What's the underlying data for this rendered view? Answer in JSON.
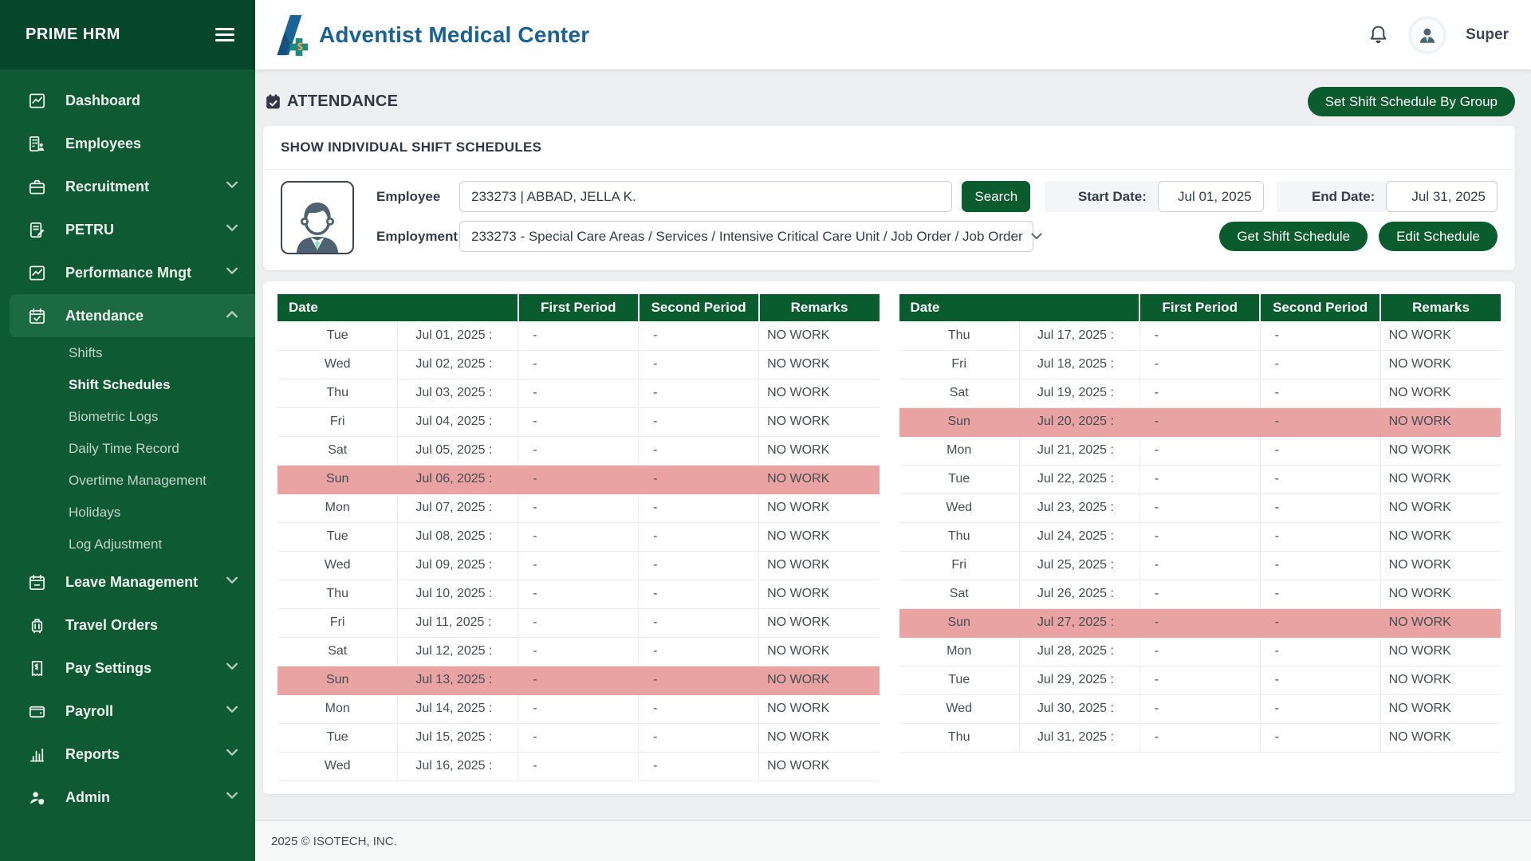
{
  "colors": {
    "sidebar": "#0d5a33",
    "sidebar_dark": "#06462a",
    "sidebar_active": "#1b6a42",
    "accent_green": "#0a5c2e",
    "table_header_green": "#095c2d",
    "sunday_highlight": "#e9a3a3",
    "brand_blue": "#1a6295"
  },
  "sidebar": {
    "brand": "PRIME HRM",
    "items": [
      {
        "label": "Dashboard",
        "icon": "chart-line-icon"
      },
      {
        "label": "Employees",
        "icon": "building-users-icon"
      },
      {
        "label": "Recruitment",
        "icon": "briefcase-icon",
        "chevron": "down"
      },
      {
        "label": "PETRU",
        "icon": "file-signature-icon",
        "chevron": "down"
      },
      {
        "label": "Performance Mngt",
        "icon": "chart-line-icon",
        "chevron": "down"
      },
      {
        "label": "Attendance",
        "icon": "calendar-check-icon",
        "chevron": "up",
        "active": true,
        "children": [
          {
            "label": "Shifts"
          },
          {
            "label": "Shift Schedules",
            "active": true
          },
          {
            "label": "Biometric Logs"
          },
          {
            "label": "Daily Time Record"
          },
          {
            "label": "Overtime Management"
          },
          {
            "label": "Holidays"
          },
          {
            "label": "Log Adjustment"
          }
        ]
      },
      {
        "label": "Leave Management",
        "icon": "calendar-minus-icon",
        "chevron": "down"
      },
      {
        "label": "Travel Orders",
        "icon": "suitcase-icon"
      },
      {
        "label": "Pay Settings",
        "icon": "receipt-icon",
        "chevron": "down"
      },
      {
        "label": "Payroll",
        "icon": "wallet-icon",
        "chevron": "down"
      },
      {
        "label": "Reports",
        "icon": "bar-chart-icon",
        "chevron": "down"
      },
      {
        "label": "Admin",
        "icon": "user-shield-icon",
        "chevron": "down"
      }
    ]
  },
  "header": {
    "brand": "Adventist Medical Center",
    "user": "Super"
  },
  "page": {
    "title": "ATTENDANCE",
    "group_button": "Set Shift Schedule By Group"
  },
  "filter": {
    "panel_title": "SHOW INDIVIDUAL SHIFT SCHEDULES",
    "employee_label": "Employee",
    "employee_value": "233273 | ABBAD, JELLA K.",
    "employment_label": "Employment",
    "employment_value": "233273 - Special Care Areas / Services / Intensive Critical Care Unit / Job Order / Job Order",
    "search_button": "Search",
    "start_date_label": "Start Date:",
    "start_date_value": "Jul 01, 2025",
    "end_date_label": "End Date:",
    "end_date_value": "Jul 31, 2025",
    "get_button": "Get Shift Schedule",
    "edit_button": "Edit Schedule"
  },
  "schedule": {
    "columns": [
      "Date",
      "First Period",
      "Second Period",
      "Remarks"
    ],
    "tables": [
      {
        "rows": [
          {
            "day": "Tue",
            "date": "Jul 01, 2025 :",
            "first": "-",
            "second": "-",
            "remarks": "NO WORK",
            "sunday": false
          },
          {
            "day": "Wed",
            "date": "Jul 02, 2025 :",
            "first": "-",
            "second": "-",
            "remarks": "NO WORK",
            "sunday": false
          },
          {
            "day": "Thu",
            "date": "Jul 03, 2025 :",
            "first": "-",
            "second": "-",
            "remarks": "NO WORK",
            "sunday": false
          },
          {
            "day": "Fri",
            "date": "Jul 04, 2025 :",
            "first": "-",
            "second": "-",
            "remarks": "NO WORK",
            "sunday": false
          },
          {
            "day": "Sat",
            "date": "Jul 05, 2025 :",
            "first": "-",
            "second": "-",
            "remarks": "NO WORK",
            "sunday": false
          },
          {
            "day": "Sun",
            "date": "Jul 06, 2025 :",
            "first": "-",
            "second": "-",
            "remarks": "NO WORK",
            "sunday": true
          },
          {
            "day": "Mon",
            "date": "Jul 07, 2025 :",
            "first": "-",
            "second": "-",
            "remarks": "NO WORK",
            "sunday": false
          },
          {
            "day": "Tue",
            "date": "Jul 08, 2025 :",
            "first": "-",
            "second": "-",
            "remarks": "NO WORK",
            "sunday": false
          },
          {
            "day": "Wed",
            "date": "Jul 09, 2025 :",
            "first": "-",
            "second": "-",
            "remarks": "NO WORK",
            "sunday": false
          },
          {
            "day": "Thu",
            "date": "Jul 10, 2025 :",
            "first": "-",
            "second": "-",
            "remarks": "NO WORK",
            "sunday": false
          },
          {
            "day": "Fri",
            "date": "Jul 11, 2025 :",
            "first": "-",
            "second": "-",
            "remarks": "NO WORK",
            "sunday": false
          },
          {
            "day": "Sat",
            "date": "Jul 12, 2025 :",
            "first": "-",
            "second": "-",
            "remarks": "NO WORK",
            "sunday": false
          },
          {
            "day": "Sun",
            "date": "Jul 13, 2025 :",
            "first": "-",
            "second": "-",
            "remarks": "NO WORK",
            "sunday": true
          },
          {
            "day": "Mon",
            "date": "Jul 14, 2025 :",
            "first": "-",
            "second": "-",
            "remarks": "NO WORK",
            "sunday": false
          },
          {
            "day": "Tue",
            "date": "Jul 15, 2025 :",
            "first": "-",
            "second": "-",
            "remarks": "NO WORK",
            "sunday": false
          },
          {
            "day": "Wed",
            "date": "Jul 16, 2025 :",
            "first": "-",
            "second": "-",
            "remarks": "NO WORK",
            "sunday": false
          }
        ]
      },
      {
        "rows": [
          {
            "day": "Thu",
            "date": "Jul 17, 2025 :",
            "first": "-",
            "second": "-",
            "remarks": "NO WORK",
            "sunday": false
          },
          {
            "day": "Fri",
            "date": "Jul 18, 2025 :",
            "first": "-",
            "second": "-",
            "remarks": "NO WORK",
            "sunday": false
          },
          {
            "day": "Sat",
            "date": "Jul 19, 2025 :",
            "first": "-",
            "second": "-",
            "remarks": "NO WORK",
            "sunday": false
          },
          {
            "day": "Sun",
            "date": "Jul 20, 2025 :",
            "first": "-",
            "second": "-",
            "remarks": "NO WORK",
            "sunday": true
          },
          {
            "day": "Mon",
            "date": "Jul 21, 2025 :",
            "first": "-",
            "second": "-",
            "remarks": "NO WORK",
            "sunday": false
          },
          {
            "day": "Tue",
            "date": "Jul 22, 2025 :",
            "first": "-",
            "second": "-",
            "remarks": "NO WORK",
            "sunday": false
          },
          {
            "day": "Wed",
            "date": "Jul 23, 2025 :",
            "first": "-",
            "second": "-",
            "remarks": "NO WORK",
            "sunday": false
          },
          {
            "day": "Thu",
            "date": "Jul 24, 2025 :",
            "first": "-",
            "second": "-",
            "remarks": "NO WORK",
            "sunday": false
          },
          {
            "day": "Fri",
            "date": "Jul 25, 2025 :",
            "first": "-",
            "second": "-",
            "remarks": "NO WORK",
            "sunday": false
          },
          {
            "day": "Sat",
            "date": "Jul 26, 2025 :",
            "first": "-",
            "second": "-",
            "remarks": "NO WORK",
            "sunday": false
          },
          {
            "day": "Sun",
            "date": "Jul 27, 2025 :",
            "first": "-",
            "second": "-",
            "remarks": "NO WORK",
            "sunday": true
          },
          {
            "day": "Mon",
            "date": "Jul 28, 2025 :",
            "first": "-",
            "second": "-",
            "remarks": "NO WORK",
            "sunday": false
          },
          {
            "day": "Tue",
            "date": "Jul 29, 2025 :",
            "first": "-",
            "second": "-",
            "remarks": "NO WORK",
            "sunday": false
          },
          {
            "day": "Wed",
            "date": "Jul 30, 2025 :",
            "first": "-",
            "second": "-",
            "remarks": "NO WORK",
            "sunday": false
          },
          {
            "day": "Thu",
            "date": "Jul 31, 2025 :",
            "first": "-",
            "second": "-",
            "remarks": "NO WORK",
            "sunday": false
          }
        ]
      }
    ]
  },
  "footer": {
    "copyright": "2025 © ISOTECH, INC."
  }
}
